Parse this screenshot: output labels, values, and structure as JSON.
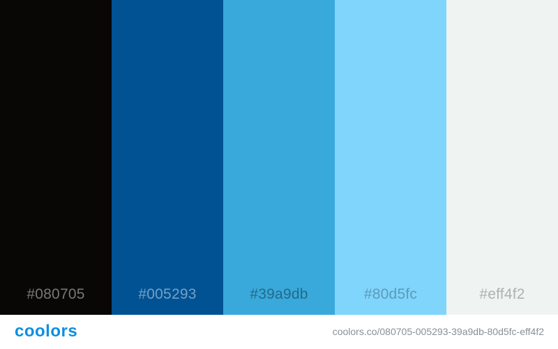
{
  "palette": {
    "swatches": [
      {
        "hex_label": "#080705",
        "color": "#080705"
      },
      {
        "hex_label": "#005293",
        "color": "#005293"
      },
      {
        "hex_label": "#39a9db",
        "color": "#39a9db"
      },
      {
        "hex_label": "#80d5fc",
        "color": "#80d5fc"
      },
      {
        "hex_label": "#eff4f2",
        "color": "#eff4f2"
      }
    ]
  },
  "footer": {
    "logo_text": "coolors",
    "logo_color": "#0a8fe0",
    "url_text": "coolors.co/080705-005293-39a9db-80d5fc-eff4f2"
  }
}
